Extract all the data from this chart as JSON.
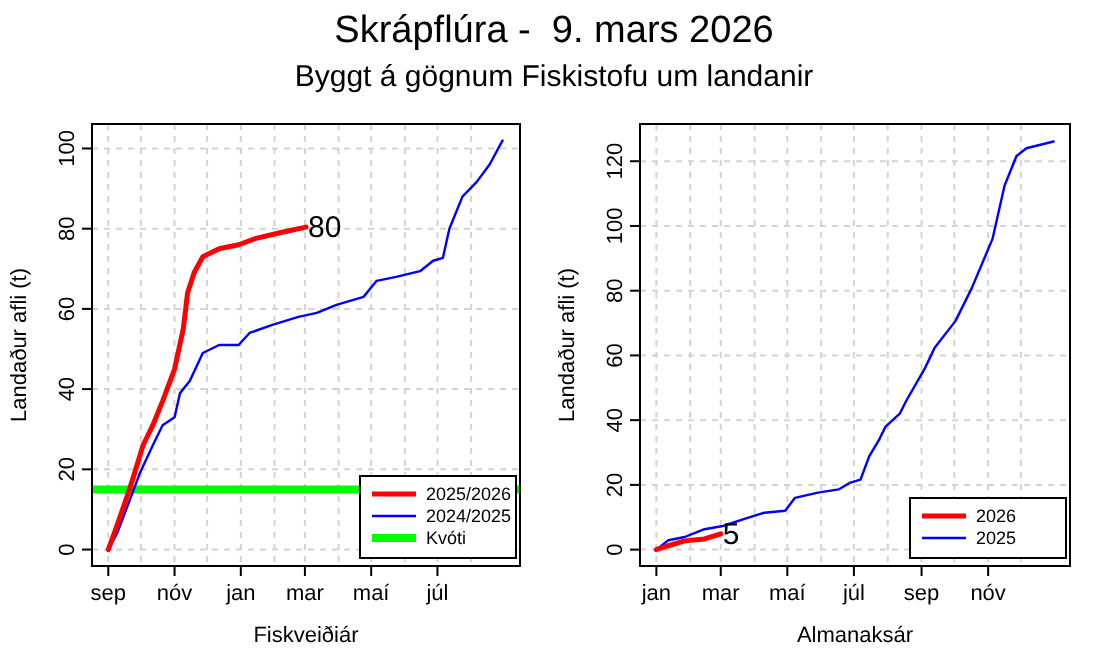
{
  "chart_data": [
    {
      "type": "line",
      "title": "Skrápflúra -  9. mars 2026",
      "subtitle": "Byggt á gögnum Fiskistofu um landanir",
      "xlabel": "Fiskveiðiár",
      "ylabel": "Landaður afli (t)",
      "xlim": [
        "2025-08-17",
        "2026-09-15"
      ],
      "ylim": [
        -4.1,
        106.1
      ],
      "xticks": [
        {
          "value": "2025-09-01",
          "label": "sep"
        },
        {
          "value": "2025-10-01",
          "label": null
        },
        {
          "value": "2025-11-01",
          "label": "nóv"
        },
        {
          "value": "2025-12-01",
          "label": null
        },
        {
          "value": "2026-01-01",
          "label": "jan"
        },
        {
          "value": "2026-02-01",
          "label": null
        },
        {
          "value": "2026-03-01",
          "label": "mar"
        },
        {
          "value": "2026-04-01",
          "label": null
        },
        {
          "value": "2026-05-01",
          "label": "maí"
        },
        {
          "value": "2026-06-01",
          "label": null
        },
        {
          "value": "2026-07-01",
          "label": "júl"
        },
        {
          "value": "2026-08-01",
          "label": null
        }
      ],
      "yticks": [
        0,
        20,
        40,
        60,
        80,
        100
      ],
      "grid": true,
      "legend": "bottom right",
      "series": [
        {
          "name": "2025/2026",
          "color": "#ff0000",
          "x": [
            "2025-09-01",
            "2025-09-09",
            "2025-09-18",
            "2025-09-24",
            "2025-10-03",
            "2025-10-12",
            "2025-10-21",
            "2025-11-01",
            "2025-11-09",
            "2025-11-13",
            "2025-11-19",
            "2025-11-27",
            "2025-12-12",
            "2025-12-30",
            "2026-01-15",
            "2026-02-06",
            "2026-03-02"
          ],
          "values": [
            0,
            6,
            13,
            18,
            26,
            31,
            37,
            45,
            55,
            64,
            69,
            73,
            75,
            76,
            77.6,
            79,
            80.4
          ]
        },
        {
          "name": "2024/2025",
          "color": "#0000ff",
          "x": [
            "2025-09-01",
            "2025-09-09",
            "2025-09-21",
            "2025-09-30",
            "2025-10-12",
            "2025-10-21",
            "2025-11-01",
            "2025-11-06",
            "2025-11-15",
            "2025-11-21",
            "2025-11-27",
            "2025-12-12",
            "2025-12-30",
            "2026-01-09",
            "2026-01-30",
            "2026-02-23",
            "2026-03-12",
            "2026-03-30",
            "2026-04-24",
            "2026-05-06",
            "2026-05-24",
            "2026-06-15",
            "2026-06-27",
            "2026-07-06",
            "2026-07-12",
            "2026-07-24",
            "2026-08-06",
            "2026-08-18",
            "2026-08-30"
          ],
          "values": [
            0,
            4,
            12.5,
            19,
            26,
            31,
            33,
            39,
            42,
            45.5,
            49,
            51,
            51,
            54,
            56,
            58,
            59,
            61,
            63,
            67,
            68,
            69.4,
            72,
            72.7,
            80,
            88,
            91.6,
            96,
            102
          ]
        }
      ],
      "ref_lines": [
        {
          "axis": "y",
          "value": 15,
          "label": "Kvóti",
          "color": "#00ff00"
        }
      ],
      "annotations": [
        {
          "text": "80",
          "x": "2026-03-02",
          "y": 80.4
        }
      ]
    },
    {
      "type": "line",
      "xlabel": "Almanaksár",
      "ylabel": "Landaður afli (t)",
      "xlim": [
        "2025-12-17",
        "2027-01-15"
      ],
      "ylim": [
        -5.06,
        131.5
      ],
      "xticks": [
        {
          "value": "2026-01-01",
          "label": "jan"
        },
        {
          "value": "2026-02-01",
          "label": null
        },
        {
          "value": "2026-03-01",
          "label": "mar"
        },
        {
          "value": "2026-04-01",
          "label": null
        },
        {
          "value": "2026-05-01",
          "label": "maí"
        },
        {
          "value": "2026-06-01",
          "label": null
        },
        {
          "value": "2026-07-01",
          "label": "júl"
        },
        {
          "value": "2026-08-01",
          "label": null
        },
        {
          "value": "2026-09-01",
          "label": "sep"
        },
        {
          "value": "2026-10-01",
          "label": null
        },
        {
          "value": "2026-11-01",
          "label": "nóv"
        },
        {
          "value": "2026-12-01",
          "label": null
        }
      ],
      "yticks": [
        0,
        20,
        40,
        60,
        80,
        100,
        120
      ],
      "grid": true,
      "legend": "bottom right",
      "series": [
        {
          "name": "2026",
          "color": "#ff0000",
          "x": [
            "2026-01-01",
            "2026-01-12",
            "2026-01-27",
            "2026-02-14",
            "2026-03-01"
          ],
          "values": [
            0,
            1.2,
            2.7,
            3.3,
            4.9
          ]
        },
        {
          "name": "2025",
          "color": "#0000ff",
          "x": [
            "2026-01-01",
            "2026-01-12",
            "2026-01-27",
            "2026-02-14",
            "2026-03-03",
            "2026-03-22",
            "2026-04-10",
            "2026-04-29",
            "2026-05-08",
            "2026-05-29",
            "2026-06-17",
            "2026-06-27",
            "2026-07-07",
            "2026-07-15",
            "2026-07-24",
            "2026-07-30",
            "2026-08-12",
            "2026-08-18",
            "2026-09-04",
            "2026-09-13",
            "2026-10-02",
            "2026-10-17",
            "2026-11-05",
            "2026-11-16",
            "2026-11-27",
            "2026-12-06",
            "2026-12-31"
          ],
          "values": [
            0,
            2.9,
            3.9,
            6.3,
            7.3,
            9.4,
            11.4,
            12,
            16,
            17.6,
            18.6,
            20.6,
            21.6,
            28.8,
            33.9,
            38,
            42,
            46,
            56,
            62.4,
            70.6,
            80.8,
            96,
            112.4,
            121.6,
            124,
            126.1
          ]
        }
      ],
      "annotations": [
        {
          "text": "5",
          "x": "2026-03-01",
          "y": 4.9
        }
      ]
    }
  ]
}
